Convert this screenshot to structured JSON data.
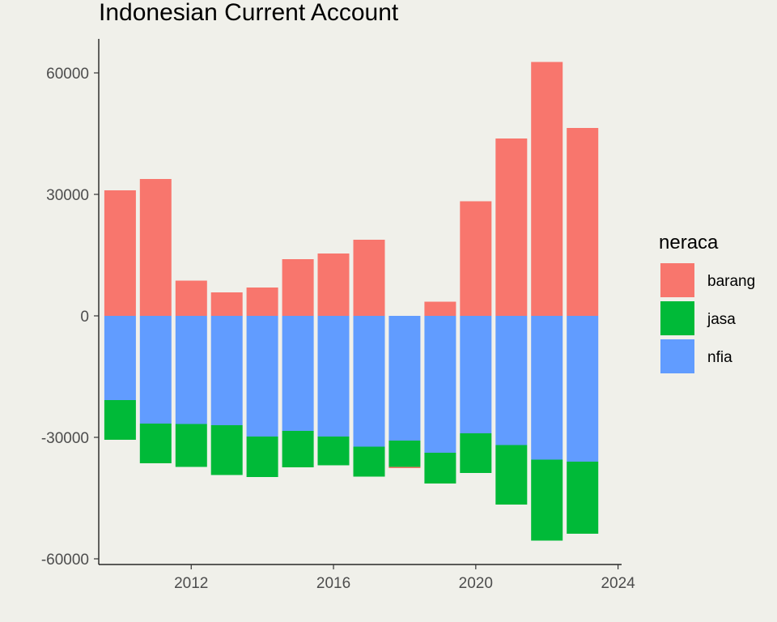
{
  "chart_data": {
    "type": "bar",
    "stacked": true,
    "title": "Indonesian Current Account",
    "xlabel": "",
    "ylabel": "",
    "x": [
      2010,
      2011,
      2012,
      2013,
      2014,
      2015,
      2016,
      2017,
      2018,
      2019,
      2020,
      2021,
      2022,
      2023
    ],
    "x_ticks": [
      "2012",
      "2016",
      "2020",
      "2024"
    ],
    "y_ticks": [
      "60000",
      "30000",
      "0",
      "-30000",
      "-60000"
    ],
    "ylim": [
      -60000,
      60000
    ],
    "xlim": [
      2009.4,
      2024.1
    ],
    "legend": {
      "title": "neraca",
      "position": "right"
    },
    "series": [
      {
        "name": "barang",
        "color": "#F8766D",
        "values": [
          31000,
          33800,
          8700,
          5800,
          7000,
          14000,
          15400,
          18800,
          -300,
          3500,
          28300,
          43800,
          62700,
          46400
        ]
      },
      {
        "name": "jasa",
        "color": "#00BA38",
        "values": [
          -9800,
          -9800,
          -10600,
          -12300,
          -10000,
          -9000,
          -7100,
          -7400,
          -6500,
          -7600,
          -9800,
          -14700,
          -20000,
          -17800
        ]
      },
      {
        "name": "nfia",
        "color": "#619CFF",
        "values": [
          -20800,
          -26600,
          -26700,
          -27000,
          -29800,
          -28400,
          -29800,
          -32300,
          -30800,
          -33800,
          -29000,
          -31900,
          -35500,
          -36000
        ]
      }
    ],
    "grid": false
  }
}
